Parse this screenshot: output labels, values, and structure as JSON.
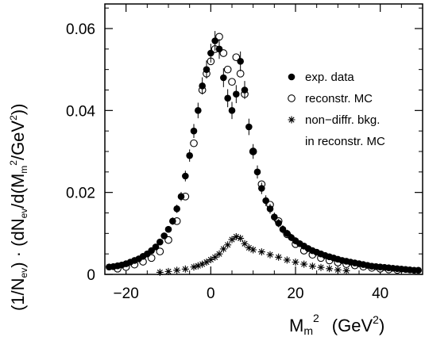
{
  "chart_data": {
    "type": "scatter",
    "title": "",
    "xlabel": {
      "main": "M",
      "sub": "m",
      "sup": "2",
      "unit": "(GeV",
      "unit_sup": "2",
      "unit_close": ")"
    },
    "ylabel": {
      "p1": "(1/N",
      "p1_sub": "ev",
      "p2": ") · (dN",
      "p2_sub": "ev",
      "p3": "/d(M",
      "p3_sub": "m",
      "p3_sup": "2",
      "p4": "/GeV",
      "p4_sup": "2",
      "p5": "))"
    },
    "xlim": [
      -25,
      50
    ],
    "ylim": [
      0,
      0.066
    ],
    "x_ticks": [
      -20,
      0,
      20,
      40
    ],
    "x_tick_labels": [
      "−20",
      "0",
      "20",
      "40"
    ],
    "y_ticks": [
      0,
      0.02,
      0.04,
      0.06
    ],
    "y_tick_labels": [
      "0",
      "0.02",
      "0.04",
      "0.06"
    ],
    "legend_position": "top-right",
    "series": [
      {
        "name": "exp. data",
        "marker": "filled-circle",
        "x": [
          -24,
          -23,
          -22,
          -21,
          -20,
          -19,
          -18,
          -17,
          -16,
          -15,
          -14,
          -13,
          -12,
          -11,
          -10,
          -9,
          -8,
          -7,
          -6,
          -5,
          -4,
          -3,
          -2,
          -1,
          0,
          1,
          2,
          3,
          4,
          5,
          6,
          7,
          8,
          9,
          10,
          11,
          12,
          13,
          14,
          15,
          16,
          17,
          18,
          19,
          20,
          21,
          22,
          23,
          24,
          25,
          26,
          27,
          28,
          29,
          30,
          31,
          32,
          33,
          34,
          35,
          36,
          37,
          38,
          39,
          40,
          41,
          42,
          43,
          44,
          45,
          46,
          47,
          48,
          49
        ],
        "y": [
          0.0018,
          0.0019,
          0.0021,
          0.0023,
          0.0026,
          0.003,
          0.0034,
          0.0038,
          0.0044,
          0.005,
          0.0058,
          0.0067,
          0.0079,
          0.0094,
          0.011,
          0.013,
          0.016,
          0.019,
          0.024,
          0.029,
          0.035,
          0.04,
          0.046,
          0.05,
          0.054,
          0.057,
          0.055,
          0.048,
          0.043,
          0.04,
          0.044,
          0.052,
          0.045,
          0.036,
          0.03,
          0.025,
          0.021,
          0.018,
          0.016,
          0.014,
          0.0125,
          0.011,
          0.01,
          0.009,
          0.0082,
          0.0075,
          0.0069,
          0.0063,
          0.0058,
          0.0054,
          0.005,
          0.0046,
          0.0043,
          0.004,
          0.0037,
          0.0034,
          0.0032,
          0.003,
          0.0028,
          0.0026,
          0.0024,
          0.0022,
          0.002,
          0.0019,
          0.0018,
          0.0017,
          0.0016,
          0.0015,
          0.0014,
          0.0013,
          0.0012,
          0.0011,
          0.001,
          0.001
        ],
        "yerr": [
          0.0004,
          0.0004,
          0.0004,
          0.0004,
          0.0004,
          0.0004,
          0.0005,
          0.0005,
          0.0005,
          0.0005,
          0.0006,
          0.0006,
          0.0007,
          0.0007,
          0.0008,
          0.0009,
          0.001,
          0.0011,
          0.0013,
          0.0015,
          0.0017,
          0.0019,
          0.0021,
          0.0022,
          0.0023,
          0.0024,
          0.0024,
          0.0023,
          0.0022,
          0.0021,
          0.0022,
          0.0024,
          0.0022,
          0.002,
          0.0018,
          0.0016,
          0.0014,
          0.0013,
          0.0012,
          0.0011,
          0.001,
          0.001,
          0.0009,
          0.0009,
          0.0009,
          0.0008,
          0.0008,
          0.0008,
          0.0008,
          0.0007,
          0.0007,
          0.0007,
          0.0007,
          0.0007,
          0.0006,
          0.0006,
          0.0006,
          0.0006,
          0.0006,
          0.0006,
          0.0005,
          0.0005,
          0.0005,
          0.0005,
          0.0005,
          0.0005,
          0.0005,
          0.0005,
          0.0004,
          0.0004,
          0.0004,
          0.0004,
          0.0004,
          0.0004
        ]
      },
      {
        "name": "reconstr. MC",
        "marker": "open-circle",
        "x": [
          -22,
          -20,
          -18,
          -16,
          -14,
          -12,
          -10,
          -8,
          -6,
          -4,
          -2,
          -1,
          0,
          1,
          2,
          3,
          4,
          5,
          6,
          7,
          8,
          10,
          12,
          14,
          16,
          18,
          20,
          22,
          24,
          26,
          28,
          30,
          32,
          34,
          36,
          38,
          40,
          42,
          44
        ],
        "y": [
          0.0014,
          0.0018,
          0.0024,
          0.0031,
          0.004,
          0.0056,
          0.0084,
          0.013,
          0.019,
          0.032,
          0.045,
          0.049,
          0.052,
          0.055,
          0.058,
          0.054,
          0.05,
          0.047,
          0.053,
          0.049,
          0.044,
          0.03,
          0.022,
          0.017,
          0.013,
          0.0098,
          0.0074,
          0.0058,
          0.0048,
          0.004,
          0.0034,
          0.0029,
          0.0025,
          0.0022,
          0.0019,
          0.0016,
          0.0014,
          0.0012,
          0.0011
        ]
      },
      {
        "name": "non-diffr. bkg.",
        "marker": "star",
        "x": [
          -12,
          -10,
          -8,
          -6,
          -4,
          -3,
          -2,
          -1,
          0,
          1,
          2,
          3,
          4,
          5,
          6,
          7,
          8,
          9,
          10,
          12,
          14,
          16,
          18,
          20,
          22,
          24,
          26,
          28,
          30,
          32
        ],
        "y": [
          0.0005,
          0.0007,
          0.001,
          0.0013,
          0.0018,
          0.0021,
          0.0025,
          0.003,
          0.0036,
          0.0042,
          0.005,
          0.0062,
          0.0072,
          0.0085,
          0.0092,
          0.0088,
          0.0075,
          0.0065,
          0.006,
          0.0055,
          0.0048,
          0.0042,
          0.0035,
          0.003,
          0.0025,
          0.002,
          0.0017,
          0.0014,
          0.0011,
          0.0009
        ]
      }
    ],
    "legend": [
      {
        "marker": "filled-circle",
        "label": "exp. data"
      },
      {
        "marker": "open-circle",
        "label": "reconstr. MC"
      },
      {
        "marker": "star",
        "label": "non−diffr. bkg."
      },
      {
        "marker": "none",
        "label": "in reconstr. MC"
      }
    ]
  }
}
